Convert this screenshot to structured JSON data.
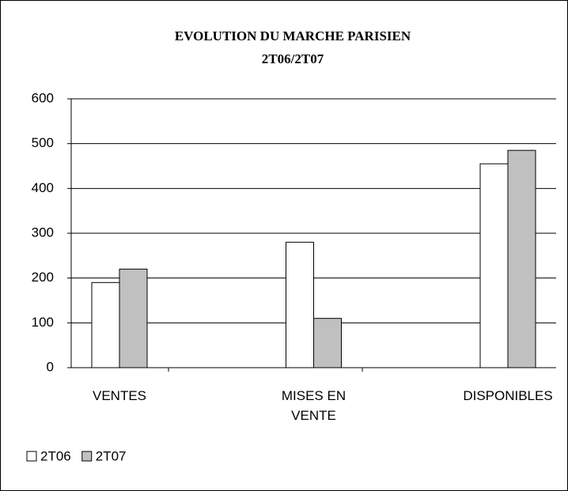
{
  "chart_data": {
    "type": "bar",
    "title": "EVOLUTION DU MARCHE PARISIEN",
    "subtitle": "2T06/2T07",
    "categories": [
      "VENTES",
      "MISES EN VENTE",
      "DISPONIBLES"
    ],
    "series": [
      {
        "name": "2T06",
        "color": "#ffffff",
        "values": [
          190,
          280,
          455
        ]
      },
      {
        "name": "2T07",
        "color": "#c0c0c0",
        "values": [
          220,
          110,
          485
        ]
      }
    ],
    "ylim": [
      0,
      600
    ],
    "yticks": [
      0,
      100,
      200,
      300,
      400,
      500,
      600
    ],
    "grid": true,
    "legend": "bottom-left"
  }
}
